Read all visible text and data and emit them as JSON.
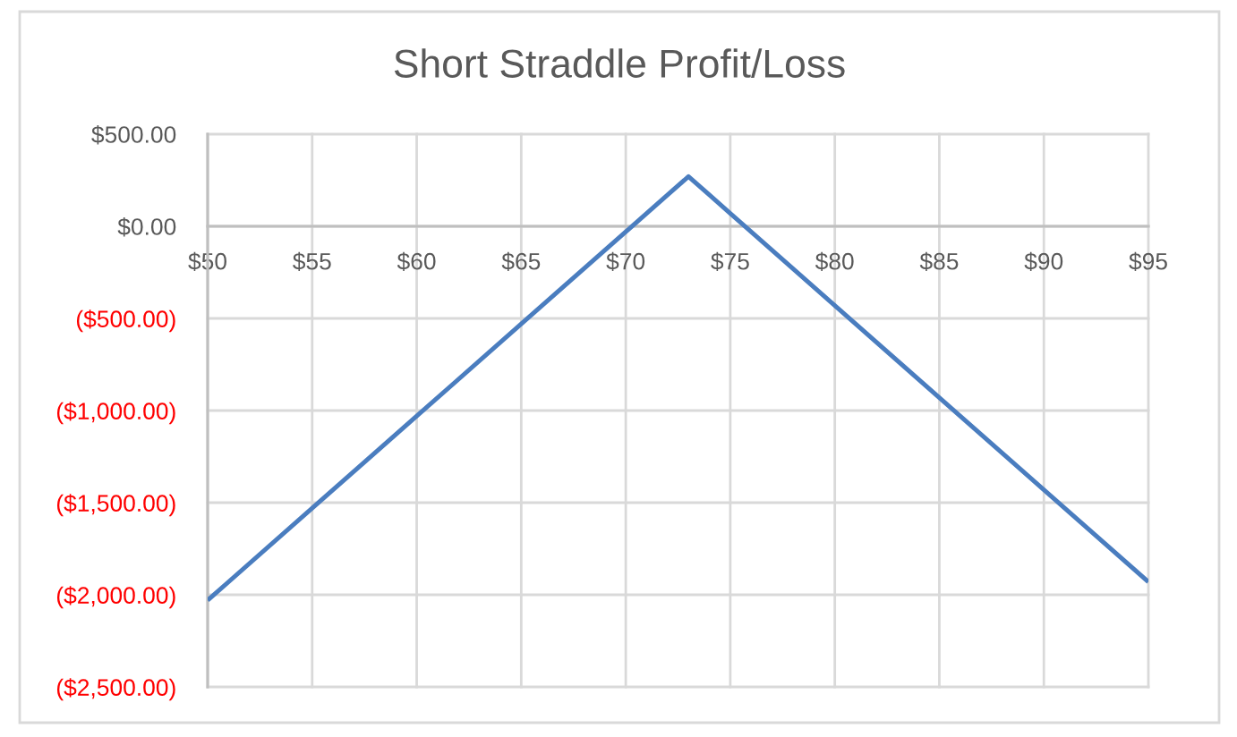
{
  "chart_data": {
    "type": "line",
    "title": "Short Straddle Profit/Loss",
    "x": [
      50,
      55,
      60,
      65,
      70,
      72,
      73,
      74,
      75,
      80,
      85,
      90,
      95
    ],
    "series": [
      {
        "color": "#4a7dbf",
        "values": [
          -2030,
          -1530,
          -1030,
          -530,
          -30,
          170,
          270,
          170,
          70,
          -430,
          -930,
          -1430,
          -1930
        ]
      }
    ],
    "xlim": [
      50,
      95
    ],
    "xticks": [
      {
        "value": 50,
        "label": "$50"
      },
      {
        "value": 55,
        "label": "$55"
      },
      {
        "value": 60,
        "label": "$60"
      },
      {
        "value": 65,
        "label": "$65"
      },
      {
        "value": 70,
        "label": "$70"
      },
      {
        "value": 75,
        "label": "$75"
      },
      {
        "value": 80,
        "label": "$80"
      },
      {
        "value": 85,
        "label": "$85"
      },
      {
        "value": 90,
        "label": "$90"
      },
      {
        "value": 95,
        "label": "$95"
      }
    ],
    "ylim": [
      -2500,
      500
    ],
    "yticks": [
      {
        "value": 500,
        "label": "$500.00"
      },
      {
        "value": 0,
        "label": "$0.00"
      },
      {
        "value": -500,
        "label": "($500.00)"
      },
      {
        "value": -1000,
        "label": "($1,000.00)"
      },
      {
        "value": -1500,
        "label": "($1,500.00)"
      },
      {
        "value": -2000,
        "label": "($2,000.00)"
      },
      {
        "value": -2500,
        "label": "($2,500.00)"
      }
    ],
    "grid": true,
    "line_style": "solid"
  }
}
